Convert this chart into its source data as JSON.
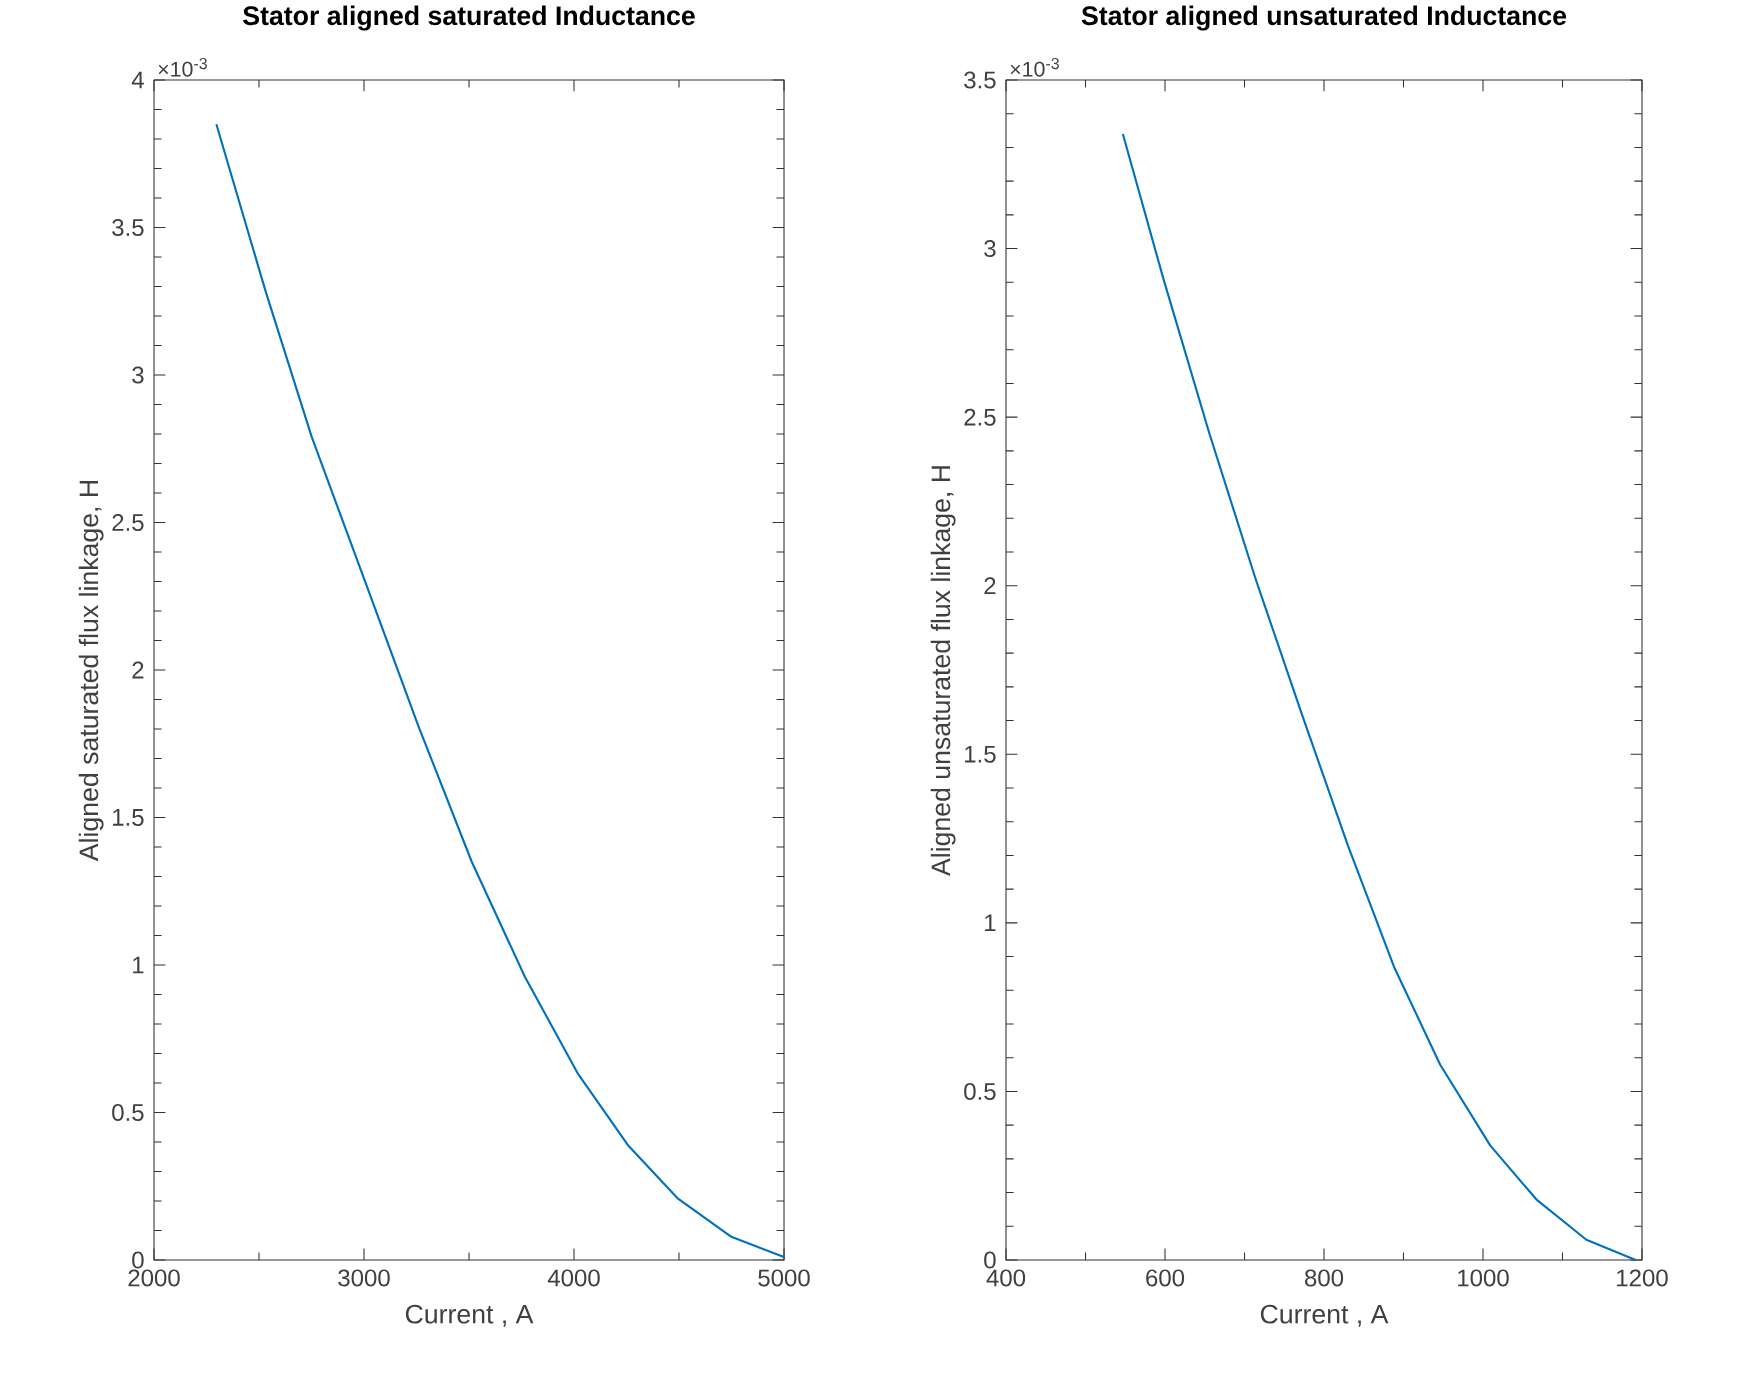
{
  "chart_data": [
    {
      "type": "line",
      "title": "Stator aligned saturated Inductance",
      "xlabel": "Current , A",
      "ylabel": "Aligned saturated flux linkage, H",
      "annotations": [
        "×10$^{-3}$"
      ],
      "x": [
        2297,
        2533,
        2751,
        3005,
        3259,
        3513,
        3766,
        4020,
        4256,
        4492,
        4746,
        5000
      ],
      "series": [
        {
          "color": "#0072bd",
          "values": [
            3.85,
            3.28,
            2.79,
            2.3,
            1.81,
            1.35,
            0.96,
            0.63,
            0.39,
            0.21,
            0.08,
            0.01
          ]
        }
      ],
      "xlim": [
        2000,
        5000
      ],
      "xticks": [
        2000,
        3000,
        4000,
        5000
      ],
      "ylim": [
        0,
        4
      ],
      "yticks": [
        0,
        0.5,
        1,
        1.5,
        2,
        2.5,
        3,
        3.5,
        4
      ],
      "grid": false
    },
    {
      "type": "line",
      "title": "Stator aligned unsaturated Inductance",
      "xlabel": "Current , A",
      "ylabel": "Aligned unsaturated flux linkage, H",
      "annotations": [
        "×10$^{-3}$"
      ],
      "x": [
        547,
        598,
        656,
        714,
        772,
        830,
        888,
        946,
        1009,
        1067,
        1130,
        1192
      ],
      "series": [
        {
          "color": "#0072bd",
          "values": [
            3.34,
            2.91,
            2.45,
            2.02,
            1.62,
            1.23,
            0.87,
            0.58,
            0.34,
            0.18,
            0.06,
            0.0
          ]
        }
      ],
      "xlim": [
        400,
        1200
      ],
      "xticks": [
        400,
        600,
        800,
        1000,
        1200
      ],
      "ylim": [
        0,
        3.5
      ],
      "yticks": [
        0,
        0.5,
        1,
        1.5,
        2,
        2.5,
        3,
        3.5
      ],
      "grid": false
    }
  ]
}
